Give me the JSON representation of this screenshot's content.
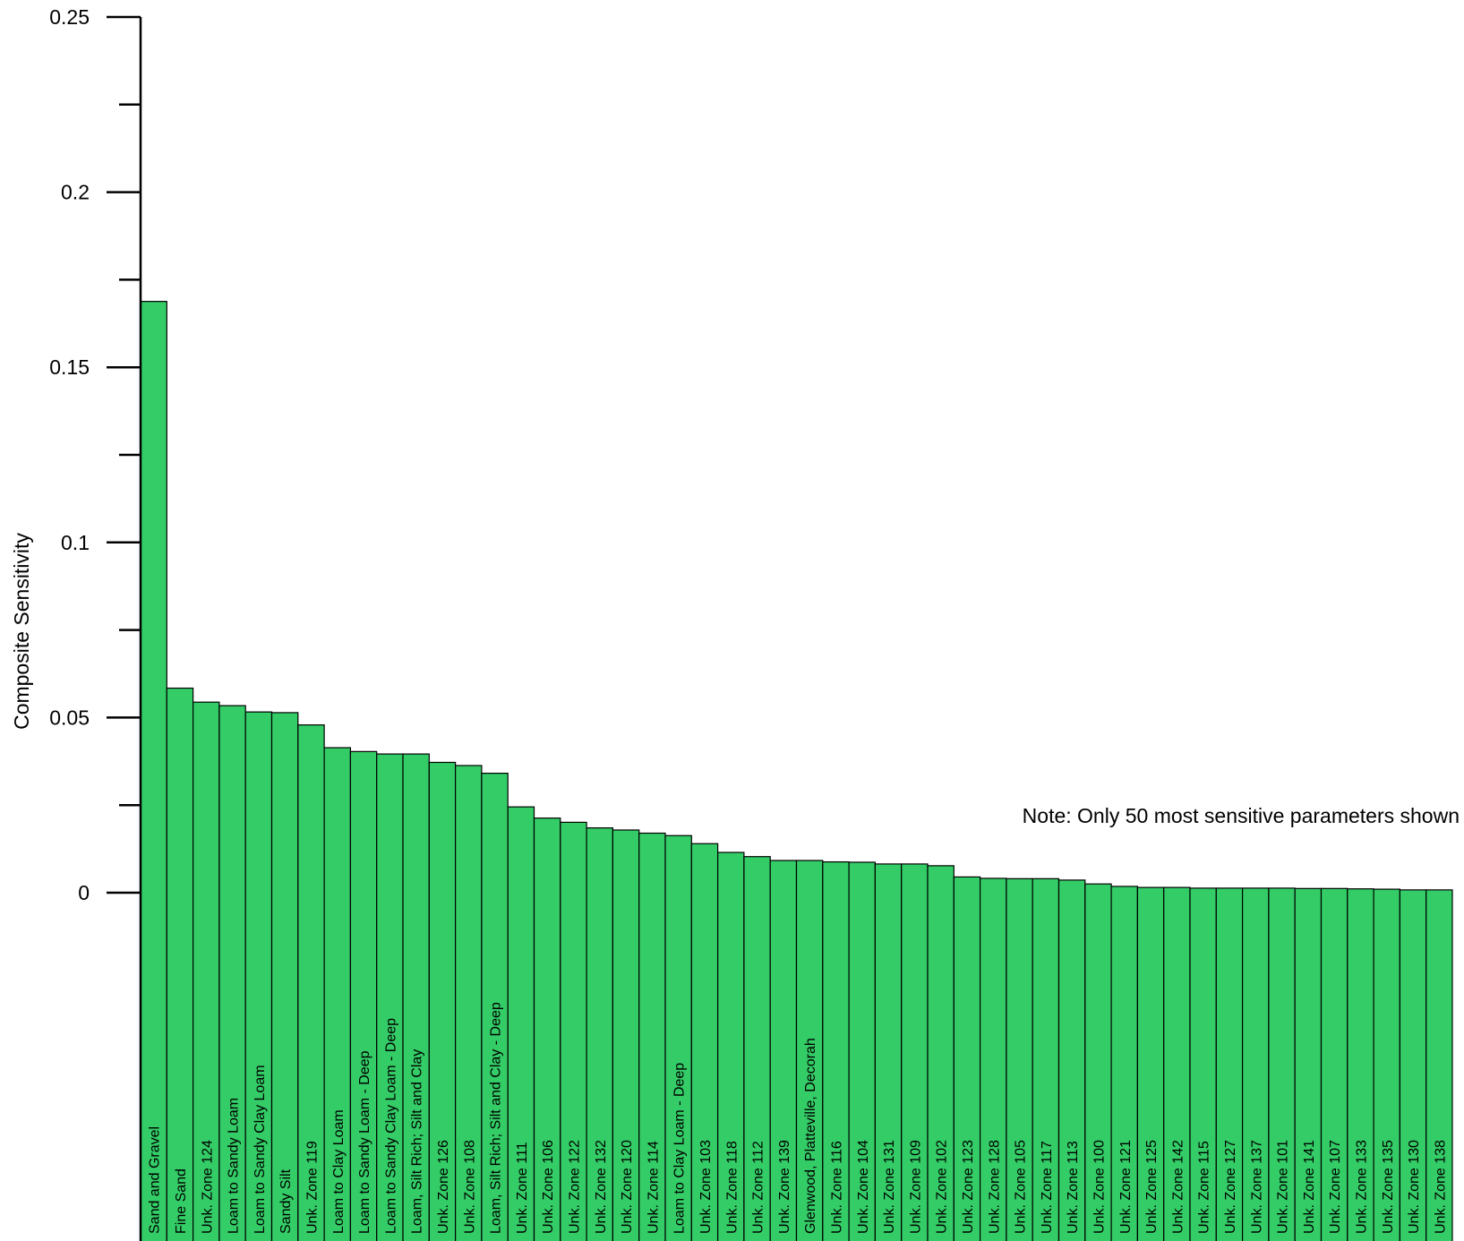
{
  "chart_data": {
    "type": "bar",
    "ylabel": "Composite Sensitivity",
    "xlabel": "",
    "ylim": [
      0,
      0.25
    ],
    "yticks": [
      {
        "value": 0,
        "label": "0"
      },
      {
        "value": 0.05,
        "label": "0.05"
      },
      {
        "value": 0.1,
        "label": "0.1"
      },
      {
        "value": 0.15,
        "label": "0.15"
      },
      {
        "value": 0.2,
        "label": "0.2"
      },
      {
        "value": 0.25,
        "label": "0.25"
      }
    ],
    "annotation": "Note: Only 50 most sensitive parameters shown",
    "bar_color": "#33cc66",
    "bar_edge_color": "#000000",
    "categories": [
      "Sand and Gravel",
      "Fine Sand",
      "Unk. Zone 124",
      "Loam to Sandy Loam",
      "Loam to Sandy Clay Loam",
      "Sandy Silt",
      "Unk. Zone 119",
      "Loam to Clay Loam",
      "Loam to Sandy Loam - Deep",
      "Loam to Sandy Clay Loam - Deep",
      "Loam, Silt Rich; Silt and Clay",
      "Unk. Zone 126",
      "Unk. Zone 108",
      "Loam, Silt Rich; Silt and Clay - Deep",
      "Unk. Zone 111",
      "Unk. Zone 106",
      "Unk. Zone 122",
      "Unk. Zone 132",
      "Unk. Zone 120",
      "Unk. Zone 114",
      "Loam to Clay Loam - Deep",
      "Unk. Zone 103",
      "Unk. Zone 118",
      "Unk. Zone 112",
      "Unk. Zone 139",
      "Glenwood, Platteville, Decorah",
      "Unk. Zone 116",
      "Unk. Zone 104",
      "Unk. Zone 131",
      "Unk. Zone 109",
      "Unk. Zone 102",
      "Unk. Zone 123",
      "Unk. Zone 128",
      "Unk. Zone 105",
      "Unk. Zone 117",
      "Unk. Zone 113",
      "Unk. Zone 100",
      "Unk. Zone 121",
      "Unk. Zone 125",
      "Unk. Zone 142",
      "Unk. Zone 115",
      "Unk. Zone 127",
      "Unk. Zone 137",
      "Unk. Zone 101",
      "Unk. Zone 141",
      "Unk. Zone 107",
      "Unk. Zone 133",
      "Unk. Zone 135",
      "Unk. Zone 130",
      "Unk. Zone 138"
    ],
    "values": [
      0.1688,
      0.0584,
      0.0544,
      0.0534,
      0.0516,
      0.0514,
      0.0479,
      0.0414,
      0.0403,
      0.0396,
      0.0396,
      0.0372,
      0.0363,
      0.0341,
      0.0245,
      0.0213,
      0.0201,
      0.0185,
      0.0179,
      0.017,
      0.0163,
      0.014,
      0.0115,
      0.0103,
      0.0092,
      0.0092,
      0.0088,
      0.0087,
      0.0082,
      0.0082,
      0.0077,
      0.0045,
      0.0041,
      0.004,
      0.004,
      0.0036,
      0.0025,
      0.0018,
      0.0015,
      0.0015,
      0.0013,
      0.0013,
      0.0013,
      0.0013,
      0.0012,
      0.0012,
      0.0011,
      0.001,
      0.0008,
      0.0008
    ]
  }
}
